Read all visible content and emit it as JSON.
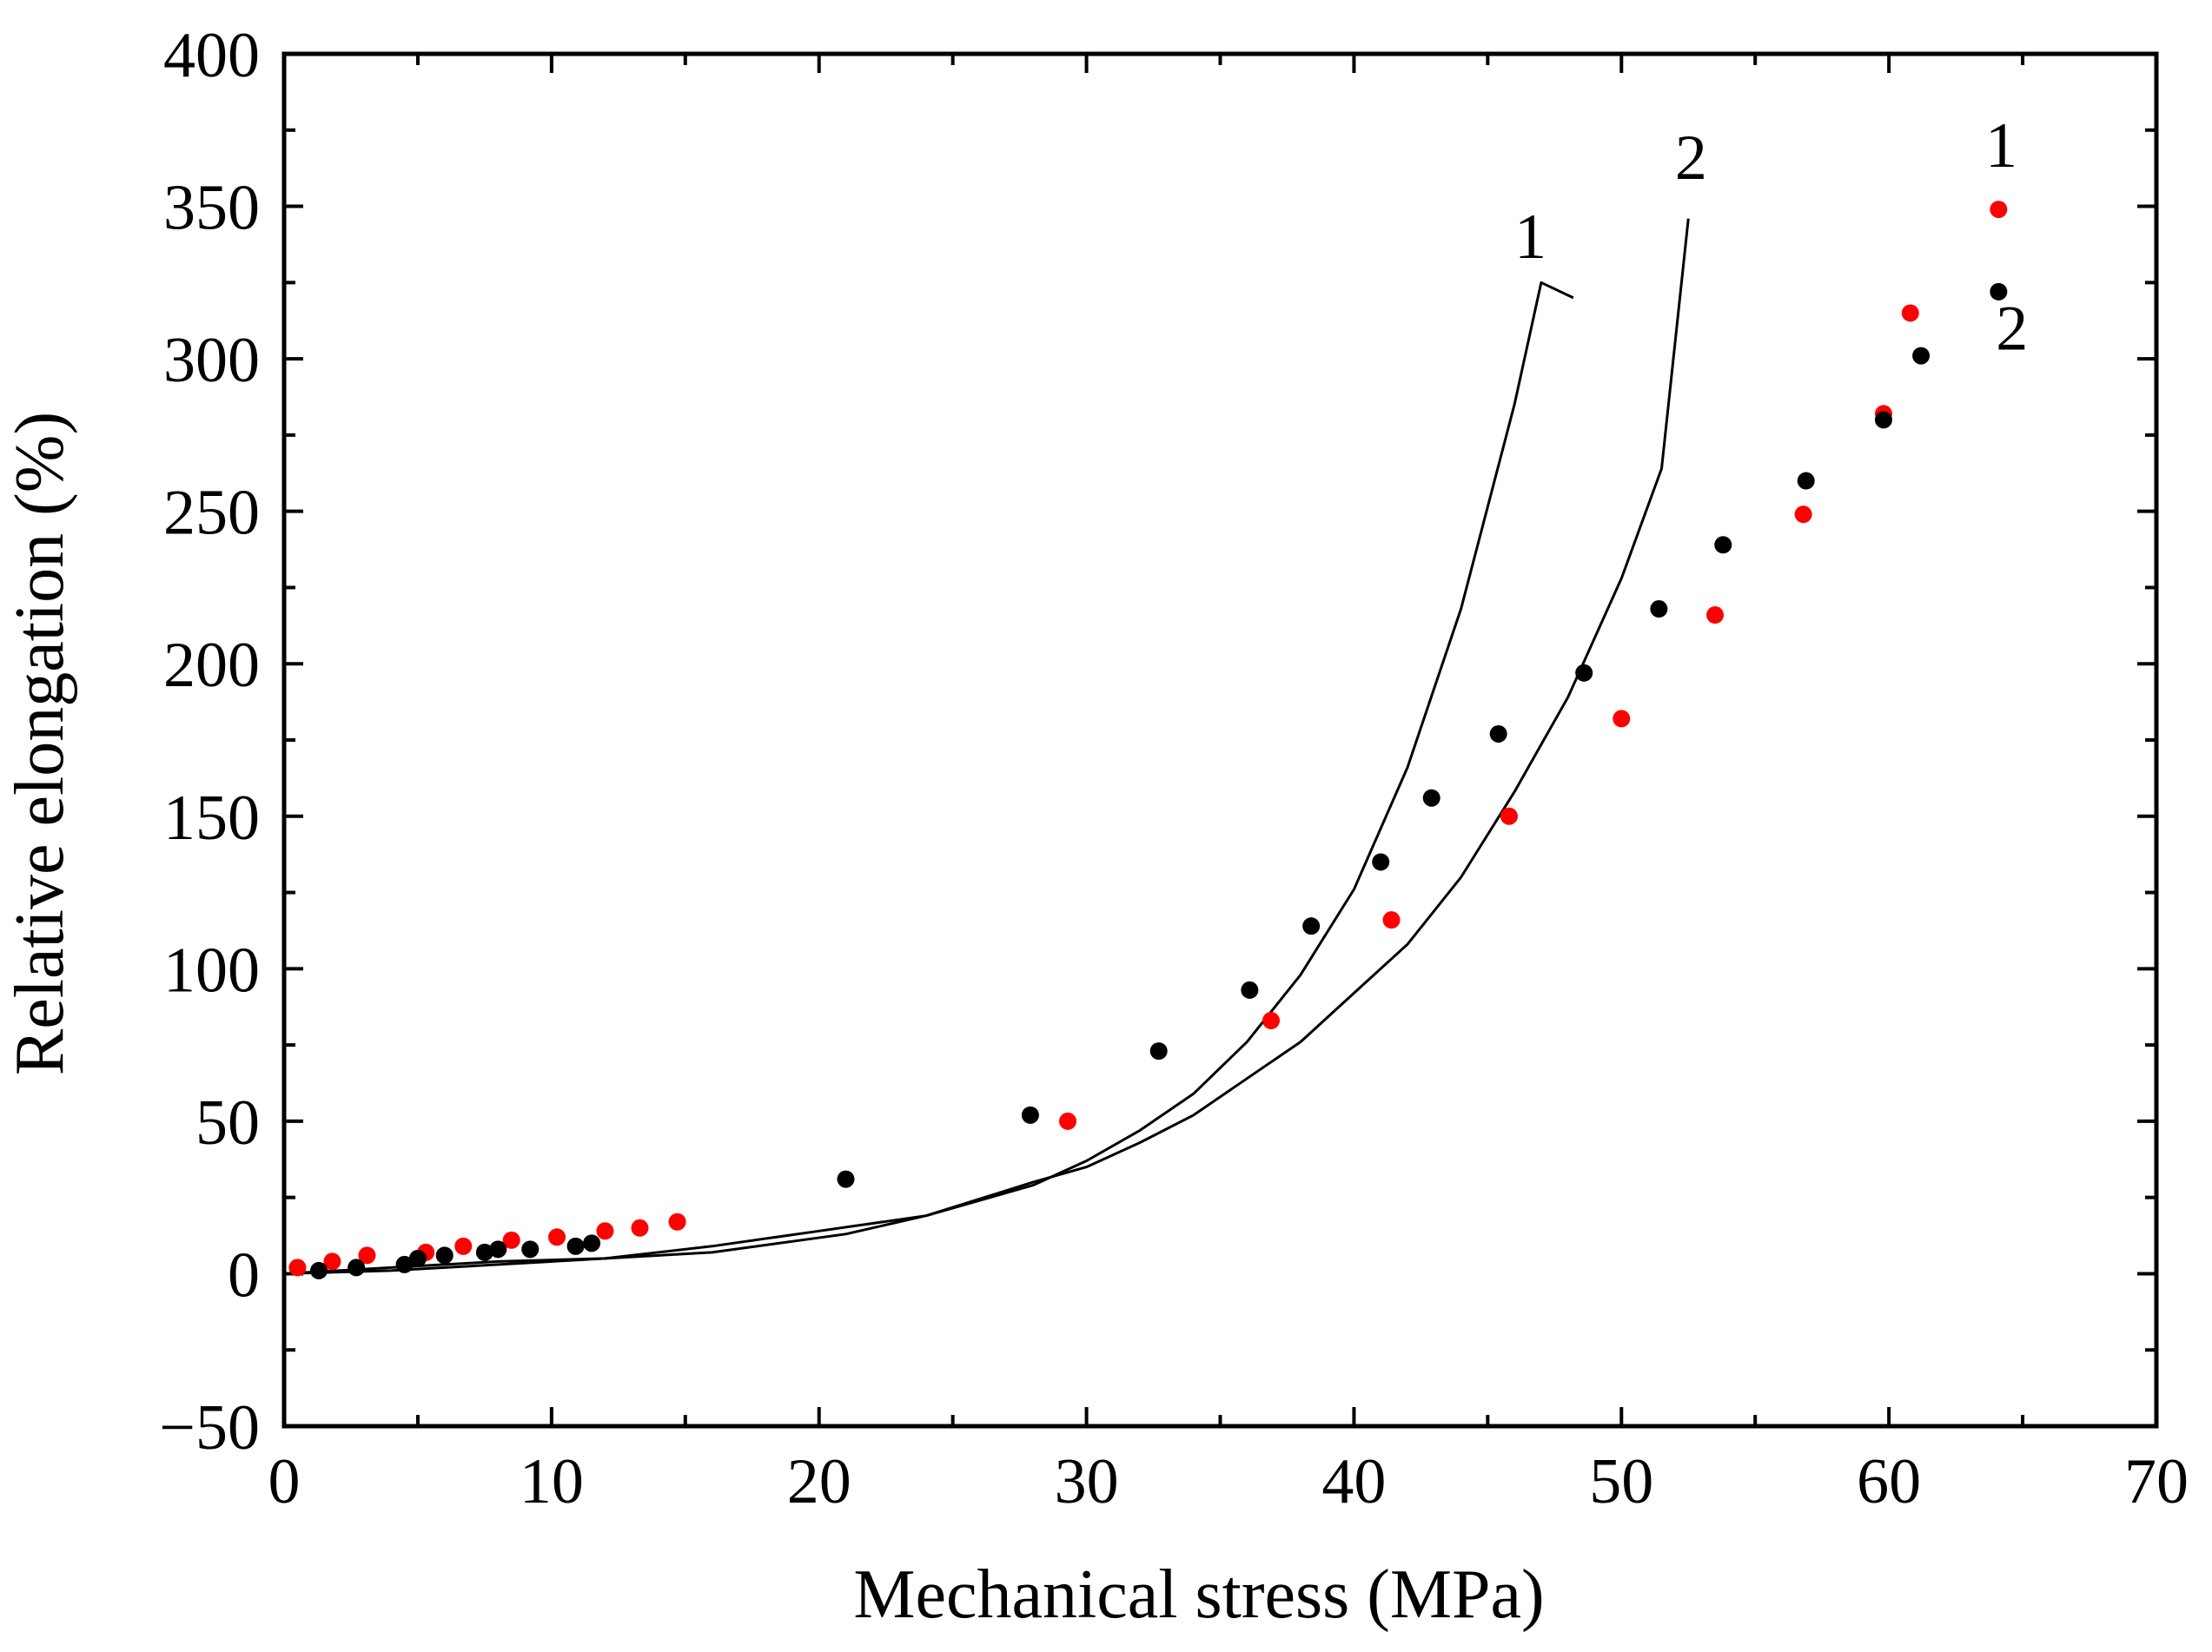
{
  "chart_data": {
    "type": "scatter",
    "xlabel": "Mechanical stress (MPa)",
    "ylabel": "Relative elongation (%)",
    "xlim": [
      0,
      70
    ],
    "ylim": [
      -50,
      400
    ],
    "x_ticks": [
      "0",
      "10",
      "20",
      "30",
      "40",
      "50",
      "60",
      "70"
    ],
    "y_ticks": [
      "−50",
      "0",
      "50",
      "100",
      "150",
      "200",
      "250",
      "300",
      "350",
      "400"
    ],
    "grid": false,
    "legend": "none",
    "series": [
      {
        "kind": "scatter",
        "color": "#ff0000",
        "x": [
          0.5,
          1.8,
          3.1,
          5.3,
          6.7,
          8.5,
          10.2,
          12.0,
          13.3,
          14.7,
          29.3,
          36.9,
          41.4,
          45.8,
          50.0,
          53.5,
          56.8,
          59.8,
          60.8,
          64.1
        ],
        "y": [
          2,
          4,
          6,
          7,
          9,
          11,
          12,
          14,
          15,
          17,
          50,
          83,
          116,
          150,
          182,
          216,
          249,
          282,
          315,
          349
        ]
      },
      {
        "kind": "scatter",
        "color": "#000000",
        "x": [
          1.3,
          2.7,
          4.5,
          5.0,
          6.0,
          7.5,
          8.0,
          9.2,
          10.9,
          11.5,
          21.0,
          27.9,
          32.7,
          36.1,
          38.4,
          41.0,
          42.9,
          45.4,
          48.6,
          51.4,
          53.8,
          56.9,
          59.8,
          61.2,
          64.1
        ],
        "y": [
          1,
          2,
          3,
          5,
          6,
          7,
          8,
          8,
          9,
          10,
          31,
          52,
          73,
          93,
          114,
          135,
          156,
          177,
          197,
          218,
          239,
          260,
          280,
          301,
          322
        ]
      },
      {
        "kind": "line",
        "color": "#000000",
        "x": [
          0,
          4,
          8,
          12,
          16,
          20,
          24,
          28,
          30,
          32,
          34,
          36,
          38,
          40,
          42,
          44,
          46,
          47,
          48.2
        ],
        "y": [
          0,
          1,
          3,
          5,
          9,
          14,
          19,
          29,
          37,
          47,
          59,
          76,
          98,
          126,
          166,
          218,
          285,
          325,
          320
        ]
      },
      {
        "kind": "line",
        "color": "#000000",
        "x": [
          0,
          4,
          8,
          12,
          16,
          21,
          24,
          28,
          30,
          32,
          34,
          36,
          38,
          40,
          42,
          44,
          46,
          48,
          50,
          51.5,
          52.5
        ],
        "y": [
          0,
          2,
          4,
          5,
          7,
          13,
          19,
          30,
          35,
          43,
          52,
          64,
          76,
          92,
          108,
          130,
          158,
          189,
          228,
          264,
          346
        ]
      }
    ],
    "annotations": [
      {
        "text": "1",
        "x": 46.6,
        "y": 333
      },
      {
        "text": "2",
        "x": 52.6,
        "y": 359
      },
      {
        "text": "1",
        "x": 64.2,
        "y": 363
      },
      {
        "text": "2",
        "x": 64.6,
        "y": 303
      }
    ]
  }
}
